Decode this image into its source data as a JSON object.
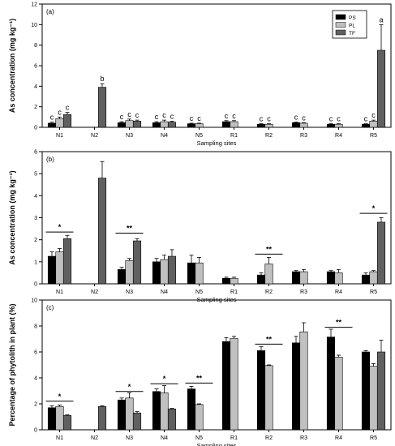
{
  "figure": {
    "colors": {
      "PS": "#000000",
      "PL": "#c0c0c0",
      "TF": "#606060",
      "axis": "#000000"
    }
  },
  "chart_data": [
    {
      "type": "bar",
      "panel_label": "(a)",
      "ylabel": "As concentration (mg kg⁻¹)",
      "xlabel": "Sampling sites",
      "ylim": [
        0,
        12
      ],
      "yticks": [
        0,
        2,
        4,
        6,
        8,
        10,
        12
      ],
      "categories": [
        "N1",
        "N2",
        "N3",
        "N4",
        "N5",
        "R1",
        "R2",
        "R3",
        "R4",
        "R5"
      ],
      "legend": {
        "position": "top-right",
        "entries": [
          "PS",
          "PL",
          "TF"
        ]
      },
      "series": [
        {
          "name": "PS",
          "values": [
            0.4,
            null,
            0.45,
            0.45,
            0.35,
            0.55,
            0.3,
            0.45,
            0.3,
            0.3
          ],
          "errors": [
            0.1,
            null,
            0.1,
            0.1,
            0.05,
            0.1,
            0.05,
            0.05,
            0.05,
            0.05
          ]
        },
        {
          "name": "PL",
          "values": [
            0.85,
            null,
            0.65,
            0.55,
            0.35,
            0.55,
            0.3,
            0.4,
            0.3,
            0.6
          ],
          "errors": [
            0.15,
            null,
            0.15,
            0.15,
            0.05,
            0.1,
            0.05,
            0.05,
            0.05,
            0.1
          ]
        },
        {
          "name": "TF",
          "values": [
            1.25,
            3.9,
            0.6,
            0.5,
            null,
            null,
            null,
            null,
            null,
            7.5
          ],
          "errors": [
            0.2,
            0.35,
            0.1,
            0.1,
            null,
            null,
            null,
            null,
            null,
            2.5
          ]
        }
      ],
      "letters": [
        {
          "series": "PS",
          "category": "N1",
          "text": "c"
        },
        {
          "series": "PL",
          "category": "N1",
          "text": "c"
        },
        {
          "series": "TF",
          "category": "N1",
          "text": "c"
        },
        {
          "series": "TF",
          "category": "N2",
          "text": "b"
        },
        {
          "series": "PS",
          "category": "N3",
          "text": "c"
        },
        {
          "series": "PL",
          "category": "N3",
          "text": "c"
        },
        {
          "series": "TF",
          "category": "N3",
          "text": "c"
        },
        {
          "series": "PS",
          "category": "N4",
          "text": "c"
        },
        {
          "series": "PL",
          "category": "N4",
          "text": "c"
        },
        {
          "series": "TF",
          "category": "N4",
          "text": "c"
        },
        {
          "series": "PS",
          "category": "N5",
          "text": "c"
        },
        {
          "series": "PL",
          "category": "N5",
          "text": "c"
        },
        {
          "series": "PS",
          "category": "R1",
          "text": "c"
        },
        {
          "series": "PL",
          "category": "R1",
          "text": "c"
        },
        {
          "series": "PS",
          "category": "R2",
          "text": "c"
        },
        {
          "series": "PL",
          "category": "R2",
          "text": "c"
        },
        {
          "series": "PS",
          "category": "R3",
          "text": "c"
        },
        {
          "series": "PL",
          "category": "R3",
          "text": "c"
        },
        {
          "series": "PS",
          "category": "R4",
          "text": "c"
        },
        {
          "series": "PL",
          "category": "R4",
          "text": "c"
        },
        {
          "series": "PS",
          "category": "R5",
          "text": "c"
        },
        {
          "series": "PL",
          "category": "R5",
          "text": "c"
        },
        {
          "series": "TF",
          "category": "R5",
          "text": "a"
        }
      ],
      "significance": []
    },
    {
      "type": "bar",
      "panel_label": "(b)",
      "ylabel": "As concentration (mg kg⁻¹)",
      "xlabel": "Sampling sites",
      "ylim": [
        0,
        6
      ],
      "yticks": [
        0,
        1,
        2,
        3,
        4,
        5,
        6
      ],
      "categories": [
        "N1",
        "N2",
        "N3",
        "N4",
        "N5",
        "R1",
        "R2",
        "R3",
        "R4",
        "R5"
      ],
      "series": [
        {
          "name": "PS",
          "values": [
            1.25,
            null,
            0.65,
            1.0,
            0.95,
            0.25,
            0.4,
            0.55,
            0.55,
            0.4
          ],
          "errors": [
            0.2,
            null,
            0.1,
            0.15,
            0.35,
            0.05,
            0.1,
            0.05,
            0.05,
            0.1
          ]
        },
        {
          "name": "PL",
          "values": [
            1.45,
            null,
            1.05,
            1.1,
            0.95,
            0.25,
            0.9,
            0.55,
            0.5,
            0.55
          ],
          "errors": [
            0.15,
            null,
            0.1,
            0.2,
            0.25,
            0.05,
            0.3,
            0.1,
            0.15,
            0.05
          ]
        },
        {
          "name": "TF",
          "values": [
            2.05,
            4.8,
            1.95,
            1.25,
            null,
            null,
            null,
            null,
            null,
            2.8
          ],
          "errors": [
            0.15,
            0.75,
            0.1,
            0.3,
            null,
            null,
            null,
            null,
            null,
            0.2
          ]
        }
      ],
      "letters": [],
      "significance": [
        {
          "category": "N1",
          "text": "*",
          "level": 2.35
        },
        {
          "category": "N3",
          "text": "**",
          "level": 2.3
        },
        {
          "category": "R2",
          "text": "**",
          "level": 1.35
        },
        {
          "category": "R5",
          "text": "*",
          "level": 3.2
        }
      ]
    },
    {
      "type": "bar",
      "panel_label": "(c)",
      "ylabel": "Percentage of phytolith in plant (%)",
      "xlabel": "Sampling sites",
      "ylim": [
        0,
        10
      ],
      "yticks": [
        0,
        2,
        4,
        6,
        8,
        10
      ],
      "categories": [
        "N1",
        "N2",
        "N3",
        "N4",
        "N5",
        "R1",
        "R2",
        "R3",
        "R4",
        "R5"
      ],
      "series": [
        {
          "name": "PS",
          "values": [
            1.7,
            null,
            2.3,
            2.95,
            3.15,
            6.8,
            6.1,
            6.7,
            7.15,
            6.0
          ],
          "errors": [
            0.15,
            null,
            0.15,
            0.2,
            0.2,
            0.3,
            0.3,
            0.5,
            0.6,
            0.1
          ]
        },
        {
          "name": "PL",
          "values": [
            1.8,
            null,
            2.45,
            2.85,
            1.95,
            7.05,
            4.95,
            7.55,
            5.6,
            4.9
          ],
          "errors": [
            0.1,
            null,
            0.4,
            0.55,
            0.05,
            0.15,
            0.05,
            0.7,
            0.15,
            0.2
          ]
        },
        {
          "name": "TF",
          "values": [
            1.1,
            1.8,
            1.3,
            1.6,
            null,
            null,
            null,
            null,
            null,
            6.0
          ],
          "errors": [
            0.05,
            0.05,
            0.1,
            0.05,
            null,
            null,
            null,
            null,
            null,
            0.9
          ]
        }
      ],
      "letters": [],
      "significance": [
        {
          "category": "N1",
          "text": "*",
          "level": 2.2
        },
        {
          "category": "N3",
          "text": "*",
          "level": 2.95
        },
        {
          "category": "N4",
          "text": "*",
          "level": 3.55
        },
        {
          "category": "N5",
          "text": "**",
          "level": 3.6
        },
        {
          "category": "R2",
          "text": "**",
          "level": 6.6
        },
        {
          "category": "R4",
          "text": "**",
          "level": 7.9
        }
      ]
    }
  ]
}
